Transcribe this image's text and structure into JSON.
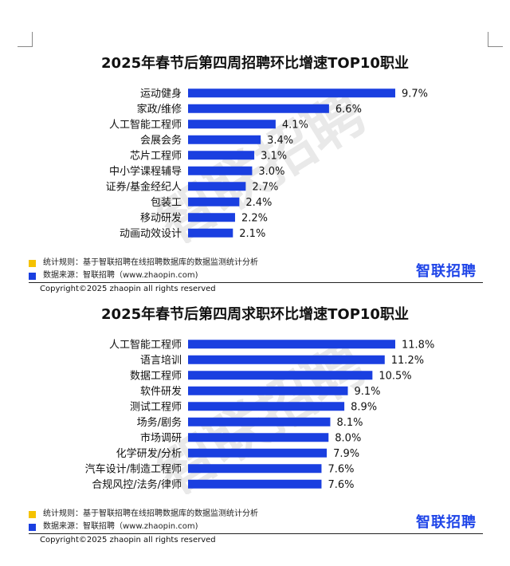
{
  "colors": {
    "bar": "#1a3fe0",
    "rule_marker": "#f5c200",
    "source_marker": "#1a3fe0",
    "logo": "#1f45e8"
  },
  "chart_data": [
    {
      "type": "bar",
      "orientation": "horizontal",
      "title": "2025年春节后第四周招聘环比增速TOP10职业",
      "categories": [
        "运动健身",
        "家政/维修",
        "人工智能工程师",
        "会展会务",
        "芯片工程师",
        "中小学课程辅导",
        "证券/基金经纪人",
        "包装工",
        "移动研发",
        "动画动效设计"
      ],
      "values": [
        9.7,
        6.6,
        4.1,
        3.4,
        3.1,
        3.0,
        2.7,
        2.4,
        2.2,
        2.1
      ],
      "value_labels": [
        "9.7%",
        "6.6%",
        "4.1%",
        "3.4%",
        "3.1%",
        "3.0%",
        "2.7%",
        "2.4%",
        "2.2%",
        "2.1%"
      ],
      "unit": "%",
      "xlim": [
        0,
        9.7
      ],
      "grid": false,
      "legend": "none"
    },
    {
      "type": "bar",
      "orientation": "horizontal",
      "title": "2025年春节后第四周求职环比增速TOP10职业",
      "categories": [
        "人工智能工程师",
        "语言培训",
        "数据工程师",
        "软件研发",
        "测试工程师",
        "场务/剧务",
        "市场调研",
        "化学研发/分析",
        "汽车设计/制造工程师",
        "合规风控/法务/律师"
      ],
      "values": [
        11.8,
        11.2,
        10.5,
        9.1,
        8.9,
        8.1,
        8.0,
        7.9,
        7.6,
        7.6
      ],
      "value_labels": [
        "11.8%",
        "11.2%",
        "10.5%",
        "9.1%",
        "8.9%",
        "8.1%",
        "8.0%",
        "7.9%",
        "7.6%",
        "7.6%"
      ],
      "unit": "%",
      "xlim": [
        0,
        11.8
      ],
      "grid": false,
      "legend": "none"
    }
  ],
  "charts": [
    {
      "title": "2025年春节后第四周招聘环比增速TOP10职业",
      "watermark": "智联招聘",
      "footer": {
        "rule_text": "统计规则：基于智联招聘在线招聘数据库的数据监测统计分析",
        "source_text": "数据来源：智联招聘（www.zhaopin.com)",
        "logo_text": "智联招聘",
        "copyright": "Copyright©2025 zhaopin all rights reserved"
      }
    },
    {
      "title": "2025年春节后第四周求职环比增速TOP10职业",
      "watermark": "智联招聘",
      "footer": {
        "rule_text": "统计规则：基于智联招聘在线招聘数据库的数据监测统计分析",
        "source_text": "数据来源：智联招聘（www.zhaopin.com)",
        "logo_text": "智联招聘",
        "copyright": "Copyright©2025 zhaopin all rights reserved"
      }
    }
  ]
}
